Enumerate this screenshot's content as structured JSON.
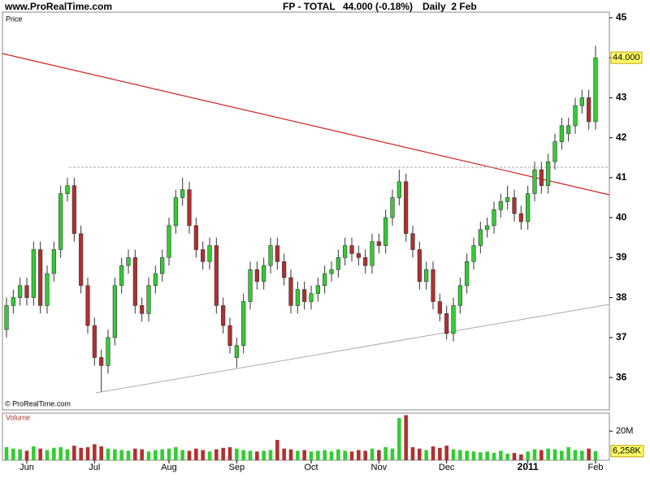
{
  "header": {
    "site": "www.ProRealTime.com",
    "instrument": "FP - TOTAL",
    "quote": "44.000 (-0.18%)",
    "period": "Daily  2 Feb"
  },
  "chart_data": [
    {
      "type": "candlestick",
      "title": "Price",
      "credit": "© ProRealTime.com",
      "categories": [
        null,
        null,
        null,
        "Jun",
        null,
        null,
        null,
        null,
        null,
        null,
        null,
        null,
        null,
        "Jul",
        null,
        null,
        null,
        null,
        null,
        null,
        null,
        null,
        null,
        null,
        "Aug",
        null,
        null,
        null,
        null,
        null,
        null,
        null,
        null,
        null,
        "Sep",
        null,
        null,
        null,
        null,
        null,
        null,
        null,
        null,
        null,
        null,
        "Oct",
        null,
        null,
        null,
        null,
        null,
        null,
        null,
        null,
        null,
        "Nov",
        null,
        null,
        null,
        null,
        null,
        null,
        null,
        null,
        null,
        "Dec",
        null,
        null,
        null,
        null,
        null,
        null,
        null,
        null,
        null,
        null,
        null,
        "2011",
        null,
        null,
        null,
        null,
        null,
        null,
        null,
        null,
        null,
        "Feb"
      ],
      "open": [
        37.2,
        37.8,
        38.0,
        38.3,
        38.0,
        39.2,
        37.8,
        38.6,
        39.2,
        40.6,
        40.8,
        39.6,
        38.3,
        37.3,
        36.5,
        36.3,
        37.0,
        38.3,
        38.8,
        39.0,
        37.8,
        37.6,
        38.3,
        38.6,
        39.0,
        39.8,
        40.5,
        40.7,
        39.8,
        39.2,
        38.9,
        39.3,
        37.8,
        37.3,
        36.5,
        36.8,
        37.9,
        38.7,
        38.4,
        38.8,
        39.3,
        38.9,
        38.5,
        37.8,
        38.2,
        37.9,
        38.1,
        38.3,
        38.6,
        38.7,
        39.0,
        39.3,
        39.1,
        39.0,
        38.8,
        39.4,
        39.3,
        40.0,
        40.5,
        40.9,
        39.6,
        39.2,
        38.4,
        38.7,
        37.9,
        37.6,
        37.1,
        37.8,
        38.3,
        38.9,
        39.3,
        39.7,
        39.8,
        40.2,
        40.4,
        40.5,
        40.1,
        39.9,
        40.6,
        41.2,
        40.8,
        41.4,
        41.9,
        42.1,
        42.3,
        42.8,
        43.0,
        42.4
      ],
      "high": [
        38.0,
        38.2,
        38.5,
        38.5,
        39.4,
        39.4,
        38.8,
        39.4,
        40.8,
        41.0,
        41.0,
        39.8,
        38.5,
        37.5,
        36.7,
        37.2,
        38.5,
        39.0,
        39.2,
        39.2,
        38.0,
        38.5,
        38.8,
        39.2,
        40.0,
        40.7,
        41.0,
        40.9,
        40.0,
        39.4,
        39.5,
        39.5,
        38.0,
        37.5,
        37.0,
        38.1,
        38.9,
        38.9,
        39.0,
        39.5,
        39.5,
        39.1,
        38.7,
        38.4,
        38.4,
        38.3,
        38.5,
        38.8,
        38.9,
        39.2,
        39.5,
        39.5,
        39.3,
        39.2,
        39.6,
        39.6,
        40.2,
        40.7,
        41.2,
        41.1,
        39.8,
        39.4,
        38.9,
        38.9,
        38.1,
        37.8,
        38.0,
        38.5,
        39.1,
        39.5,
        39.9,
        40.0,
        40.4,
        40.6,
        40.8,
        40.7,
        40.3,
        40.8,
        41.4,
        41.4,
        41.6,
        42.1,
        42.5,
        42.5,
        43.0,
        43.2,
        43.2,
        44.3
      ],
      "low": [
        37.0,
        37.6,
        37.8,
        37.8,
        37.8,
        37.6,
        37.6,
        38.4,
        39.0,
        40.4,
        39.4,
        38.1,
        37.1,
        36.3,
        35.65,
        36.1,
        36.8,
        38.1,
        38.6,
        37.6,
        37.4,
        37.4,
        38.1,
        38.4,
        38.8,
        39.6,
        40.3,
        39.6,
        39.0,
        38.7,
        38.7,
        37.6,
        37.1,
        36.6,
        36.25,
        36.6,
        37.7,
        38.2,
        38.2,
        38.6,
        38.7,
        38.3,
        37.6,
        37.6,
        37.7,
        37.7,
        37.9,
        38.1,
        38.4,
        38.5,
        38.8,
        38.9,
        38.8,
        38.6,
        38.6,
        39.1,
        39.1,
        39.8,
        40.3,
        39.4,
        39.0,
        38.2,
        38.2,
        37.7,
        37.4,
        36.95,
        36.9,
        37.6,
        38.1,
        38.7,
        39.1,
        39.5,
        39.6,
        40.0,
        40.2,
        39.9,
        39.7,
        39.7,
        40.4,
        40.6,
        40.6,
        41.2,
        41.7,
        41.9,
        42.1,
        42.6,
        42.2,
        42.2
      ],
      "close": [
        37.8,
        38.0,
        38.3,
        38.0,
        39.2,
        37.8,
        38.6,
        39.2,
        40.6,
        40.8,
        39.6,
        38.3,
        37.3,
        36.5,
        36.3,
        37.0,
        38.3,
        38.8,
        39.0,
        37.8,
        37.6,
        38.3,
        38.6,
        39.0,
        39.8,
        40.5,
        40.7,
        39.8,
        39.2,
        38.9,
        39.3,
        37.8,
        37.3,
        36.8,
        36.8,
        37.9,
        38.7,
        38.4,
        38.8,
        39.3,
        38.9,
        38.5,
        37.8,
        38.2,
        37.9,
        38.1,
        38.3,
        38.6,
        38.7,
        39.0,
        39.3,
        39.1,
        39.0,
        38.8,
        39.4,
        39.3,
        40.0,
        40.5,
        40.9,
        39.6,
        39.2,
        38.4,
        38.7,
        37.9,
        37.6,
        37.1,
        37.8,
        38.3,
        38.9,
        39.3,
        39.7,
        39.8,
        40.2,
        40.4,
        40.5,
        40.1,
        39.9,
        40.6,
        41.2,
        40.8,
        41.4,
        41.9,
        42.3,
        42.3,
        42.8,
        43.0,
        42.4,
        44.0
      ],
      "up_color": "#33cc33",
      "down_color": "#b03030",
      "last_price": {
        "value": 44.0,
        "label": "44.000"
      },
      "ylim": [
        35.19,
        45.14
      ],
      "yticks": [
        36,
        37,
        38,
        39,
        40,
        41,
        42,
        43,
        44,
        45
      ]
    },
    {
      "type": "volume",
      "title": "Volume",
      "values": [
        9000000,
        8000000,
        7500000,
        6500000,
        9500000,
        8000000,
        7000000,
        8500000,
        9000000,
        7500000,
        10000000,
        8500000,
        9000000,
        11000000,
        9500000,
        8000000,
        7500000,
        7000000,
        6500000,
        8000000,
        7500000,
        6000000,
        7000000,
        7500000,
        8000000,
        9000000,
        7000000,
        6500000,
        8000000,
        7000000,
        6000000,
        7500000,
        8500000,
        9000000,
        8000000,
        7000000,
        6500000,
        6000000,
        6500000,
        7000000,
        14000000,
        8000000,
        7500000,
        6500000,
        7000000,
        6000000,
        6500000,
        7000000,
        6000000,
        7500000,
        6500000,
        6000000,
        7000000,
        6500000,
        8000000,
        7000000,
        9000000,
        8000000,
        29000000,
        31000000,
        9000000,
        8000000,
        7000000,
        9500000,
        8500000,
        10000000,
        7500000,
        7000000,
        6500000,
        6000000,
        5500000,
        6000000,
        5000000,
        6500000,
        4500000,
        5000000,
        4000000,
        6000000,
        7500000,
        7000000,
        8000000,
        7500000,
        6500000,
        9000000,
        7000000,
        6500000,
        8000000,
        6258000
      ],
      "last_value": {
        "value": 6258000,
        "label": "6,258K"
      },
      "ylim": [
        0,
        32400000
      ],
      "yticks": [
        {
          "value": 20000000,
          "label": "20M"
        }
      ]
    }
  ]
}
